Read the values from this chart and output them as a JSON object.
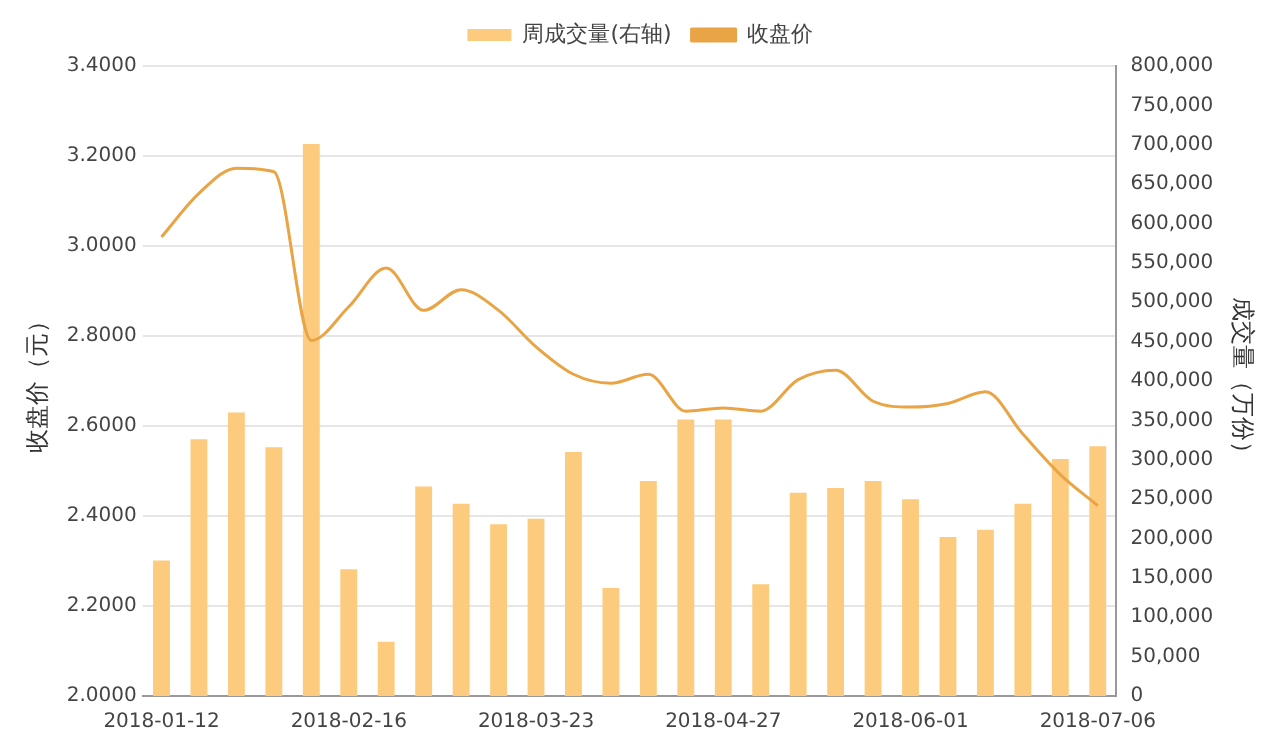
{
  "chart_data": {
    "type": "bar",
    "ylabel": "收盘价（元）",
    "y2label": "成交量（万份）",
    "categories": [
      "2018-01-12",
      null,
      null,
      null,
      null,
      "2018-02-16",
      null,
      null,
      null,
      null,
      "2018-03-23",
      null,
      null,
      null,
      null,
      "2018-04-27",
      null,
      null,
      null,
      null,
      "2018-06-01",
      null,
      null,
      null,
      null,
      "2018-07-06"
    ],
    "series": [
      {
        "name": "周成交量(右轴)",
        "axis": "y2",
        "color": "#fccb7d",
        "values": [
          172000,
          326000,
          360000,
          316000,
          701000,
          161000,
          69000,
          266000,
          244000,
          218000,
          225000,
          310000,
          137000,
          273000,
          351000,
          351000,
          142000,
          258000,
          264000,
          273000,
          250000,
          202000,
          211000,
          244000,
          301000,
          317000
        ]
      },
      {
        "name": "收盘价",
        "type": "line",
        "color": "#e9a445",
        "values": [
          3.02,
          3.117,
          3.173,
          3.165,
          2.79,
          2.865,
          2.951,
          2.857,
          2.903,
          2.857,
          2.776,
          2.715,
          2.695,
          2.715,
          2.633,
          2.64,
          2.633,
          2.703,
          2.724,
          2.655,
          2.642,
          2.65,
          2.676,
          2.582,
          2.492,
          2.423
        ]
      }
    ],
    "ylim": [
      2,
      3.4
    ],
    "yticks": [
      {
        "value": 2,
        "label": "2.0000"
      },
      {
        "value": 2.2,
        "label": "2.2000"
      },
      {
        "value": 2.4,
        "label": "2.4000"
      },
      {
        "value": 2.6,
        "label": "2.6000"
      },
      {
        "value": 2.8,
        "label": "2.8000"
      },
      {
        "value": 3,
        "label": "3.0000"
      },
      {
        "value": 3.2,
        "label": "3.2000"
      },
      {
        "value": 3.4,
        "label": "3.4000"
      }
    ],
    "y2lim": [
      0,
      800000
    ],
    "y2ticks": [
      0,
      {
        "value": 50000,
        "label": "50,000"
      },
      {
        "value": 100000,
        "label": "100,000"
      },
      {
        "value": 150000,
        "label": "150,000"
      },
      {
        "value": 200000,
        "label": "200,000"
      },
      {
        "value": 250000,
        "label": "250,000"
      },
      {
        "value": 300000,
        "label": "300,000"
      },
      {
        "value": 350000,
        "label": "350,000"
      },
      {
        "value": 400000,
        "label": "400,000"
      },
      {
        "value": 450000,
        "label": "450,000"
      },
      {
        "value": 500000,
        "label": "500,000"
      },
      {
        "value": 550000,
        "label": "550,000"
      },
      {
        "value": 600000,
        "label": "600,000"
      },
      {
        "value": 650000,
        "label": "650,000"
      },
      {
        "value": 700000,
        "label": "700,000"
      },
      {
        "value": 750000,
        "label": "750,000"
      },
      {
        "value": 800000,
        "label": "800,000"
      }
    ],
    "grid": "y",
    "legend": "top",
    "marker": "none"
  }
}
